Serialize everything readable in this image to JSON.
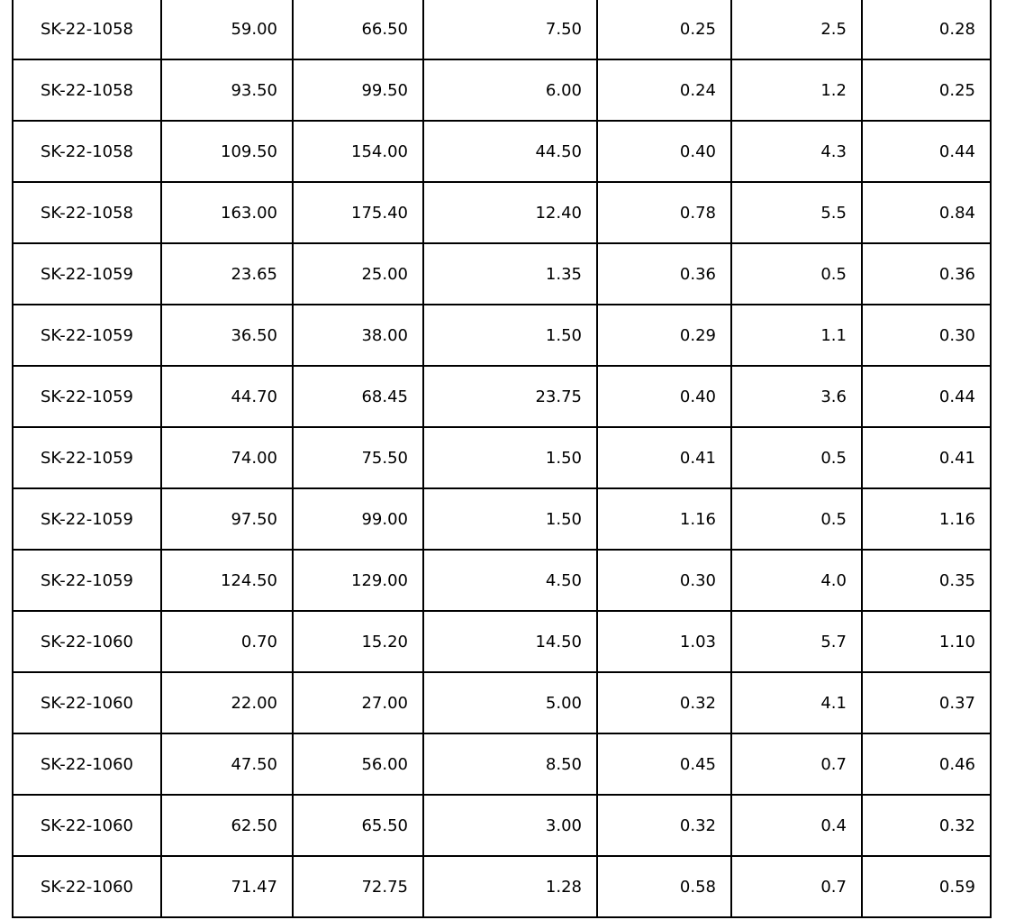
{
  "table": {
    "rows": [
      [
        "SK-22-1058",
        "59.00",
        "66.50",
        "7.50",
        "0.25",
        "2.5",
        "0.28"
      ],
      [
        "SK-22-1058",
        "93.50",
        "99.50",
        "6.00",
        "0.24",
        "1.2",
        "0.25"
      ],
      [
        "SK-22-1058",
        "109.50",
        "154.00",
        "44.50",
        "0.40",
        "4.3",
        "0.44"
      ],
      [
        "SK-22-1058",
        "163.00",
        "175.40",
        "12.40",
        "0.78",
        "5.5",
        "0.84"
      ],
      [
        "SK-22-1059",
        "23.65",
        "25.00",
        "1.35",
        "0.36",
        "0.5",
        "0.36"
      ],
      [
        "SK-22-1059",
        "36.50",
        "38.00",
        "1.50",
        "0.29",
        "1.1",
        "0.30"
      ],
      [
        "SK-22-1059",
        "44.70",
        "68.45",
        "23.75",
        "0.40",
        "3.6",
        "0.44"
      ],
      [
        "SK-22-1059",
        "74.00",
        "75.50",
        "1.50",
        "0.41",
        "0.5",
        "0.41"
      ],
      [
        "SK-22-1059",
        "97.50",
        "99.00",
        "1.50",
        "1.16",
        "0.5",
        "1.16"
      ],
      [
        "SK-22-1059",
        "124.50",
        "129.00",
        "4.50",
        "0.30",
        "4.0",
        "0.35"
      ],
      [
        "SK-22-1060",
        "0.70",
        "15.20",
        "14.50",
        "1.03",
        "5.7",
        "1.10"
      ],
      [
        "SK-22-1060",
        "22.00",
        "27.00",
        "5.00",
        "0.32",
        "4.1",
        "0.37"
      ],
      [
        "SK-22-1060",
        "47.50",
        "56.00",
        "8.50",
        "0.45",
        "0.7",
        "0.46"
      ],
      [
        "SK-22-1060",
        "62.50",
        "65.50",
        "3.00",
        "0.32",
        "0.4",
        "0.32"
      ],
      [
        "SK-22-1060",
        "71.47",
        "72.75",
        "1.28",
        "0.58",
        "0.7",
        "0.59"
      ]
    ]
  },
  "colors": {
    "border": "#000000",
    "text": "#000000",
    "background": "#ffffff"
  }
}
